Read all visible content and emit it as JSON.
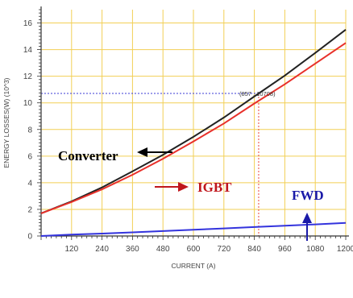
{
  "chart_data": {
    "type": "line",
    "title": "",
    "xlabel": "CURRENT (A)",
    "ylabel": "ENERGY  LOSSES(W) (10^3)",
    "xlim": [
      0,
      1200
    ],
    "ylim": [
      0,
      17
    ],
    "xticks": [
      120,
      240,
      360,
      480,
      600,
      720,
      840,
      960,
      1080,
      1200
    ],
    "xtick_labels": [
      "120",
      "240",
      "360",
      "480",
      "600",
      "720",
      "840",
      "960",
      "1080",
      "1200"
    ],
    "yticks": [
      0,
      2,
      4,
      6,
      8,
      10,
      12,
      14,
      16
    ],
    "ytick_labels": [
      "0",
      "2",
      "4",
      "6",
      "8",
      "10",
      "12",
      "14",
      "16"
    ],
    "grid": true,
    "series": [
      {
        "name": "Converter",
        "color": "#222222",
        "x": [
          0,
          120,
          240,
          360,
          480,
          600,
          720,
          857,
          960,
          1080,
          1200
        ],
        "y": [
          1.7,
          2.6,
          3.65,
          4.85,
          6.1,
          7.45,
          8.9,
          10.71,
          12.05,
          13.75,
          15.5
        ]
      },
      {
        "name": "IGBT",
        "color": "#e8302a",
        "x": [
          0,
          120,
          240,
          360,
          480,
          600,
          720,
          840,
          960,
          1080,
          1200
        ],
        "y": [
          1.7,
          2.55,
          3.5,
          4.6,
          5.8,
          7.1,
          8.45,
          9.95,
          11.4,
          12.95,
          14.5
        ]
      },
      {
        "name": "FWD",
        "color": "#3333dd",
        "x": [
          0,
          120,
          240,
          360,
          480,
          600,
          720,
          840,
          960,
          1080,
          1200
        ],
        "y": [
          0.0,
          0.1,
          0.18,
          0.27,
          0.37,
          0.47,
          0.57,
          0.67,
          0.77,
          0.87,
          0.98
        ]
      }
    ],
    "annotations": [
      {
        "text": "Converter",
        "color": "#000000",
        "arrow": "left",
        "arrow_color": "#000000"
      },
      {
        "text": "IGBT",
        "color": "#c0161c",
        "arrow": "right",
        "arrow_color": "#c0161c"
      },
      {
        "text": "FWD",
        "color": "#1a1aa8",
        "arrow": "up",
        "arrow_color": "#1a1aa8"
      }
    ],
    "marked_point": {
      "x": 857,
      "y": 10.708,
      "label": "(857 , 10708)"
    }
  }
}
